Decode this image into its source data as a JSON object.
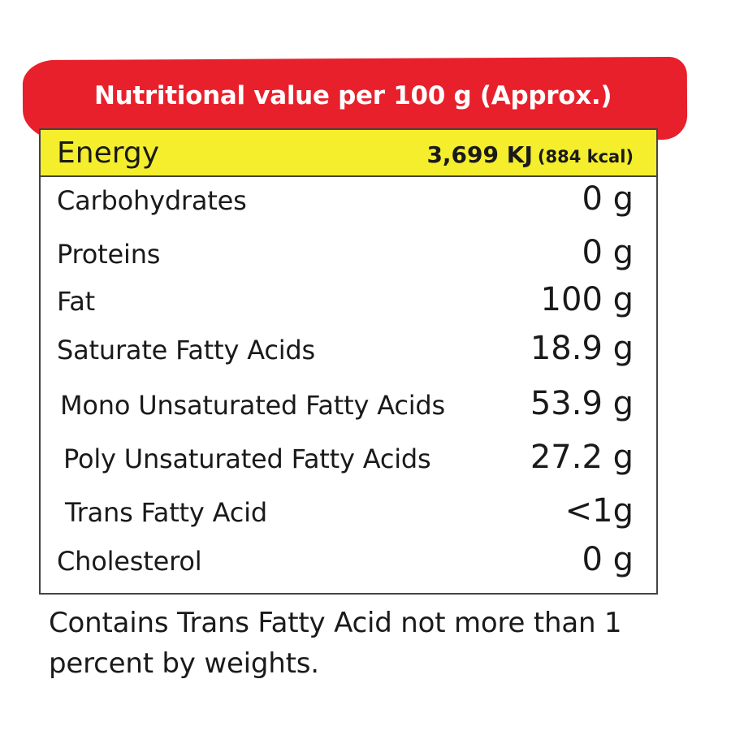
{
  "header": {
    "title": "Nutritional value per 100 g (Approx.)",
    "banner_color": "#e8202b"
  },
  "energy": {
    "label": "Energy",
    "kj": "3,699 KJ",
    "kcal": "(884 kcal)",
    "highlight_color": "#f4ee2c"
  },
  "rows": [
    {
      "label": "Carbohydrates",
      "value": "0 g"
    },
    {
      "label": "Proteins",
      "value": "0 g"
    },
    {
      "label": "Fat",
      "value": "100 g"
    },
    {
      "label": "Saturate Fatty Acids",
      "value": "18.9 g"
    },
    {
      "label": "Mono Unsaturated Fatty Acids",
      "value": "53.9 g"
    },
    {
      "label": "Poly Unsaturated Fatty Acids",
      "value": "27.2 g"
    },
    {
      "label": "Trans Fatty Acid",
      "value": "<1g"
    },
    {
      "label": "Cholesterol",
      "value": "0 g"
    }
  ],
  "footnote": "Contains Trans Fatty Acid not more than 1 percent by weights."
}
